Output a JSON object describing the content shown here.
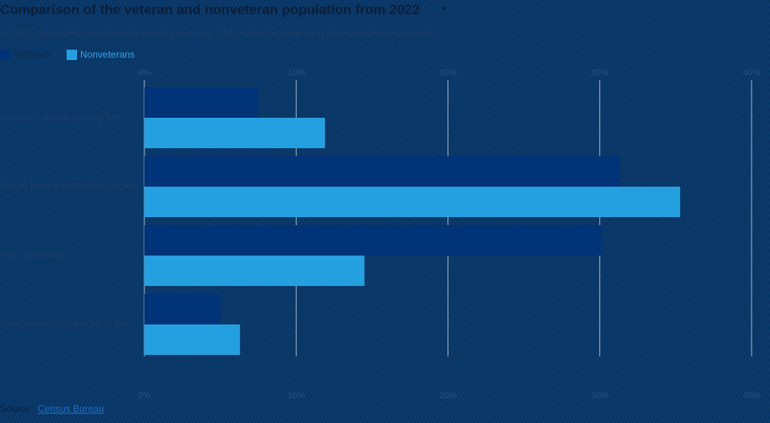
{
  "chart_data": {
    "type": "bar",
    "orientation": "horizontal",
    "title": "Comparison of the veteran and nonveteran population from 2022",
    "subtitle": "In 2022, the veteran population's poverty rate was 7.5%, which is lower than the nonveteran population.",
    "categories": [
      "Income is below poverty line",
      "Has at least a bachelor's degree",
      "Has a disability",
      "Unemployment rate (18 to 64)"
    ],
    "series": [
      {
        "name": "Veterans",
        "color": "#003378",
        "values": [
          7.5,
          31.3,
          30.1,
          5.0
        ]
      },
      {
        "name": "Nonveterans",
        "color": "#24a0e0",
        "values": [
          11.9,
          35.3,
          14.5,
          6.3
        ]
      }
    ],
    "xlim": [
      0,
      40
    ],
    "xticks": [
      {
        "value": 0,
        "label": "0%"
      },
      {
        "value": 10,
        "label": "10%"
      },
      {
        "value": 20,
        "label": "20%"
      },
      {
        "value": 30,
        "label": "30%"
      },
      {
        "value": 40,
        "label": "40%"
      }
    ],
    "grid": true,
    "source": {
      "label": "Source:",
      "link": "Census Bureau"
    }
  }
}
